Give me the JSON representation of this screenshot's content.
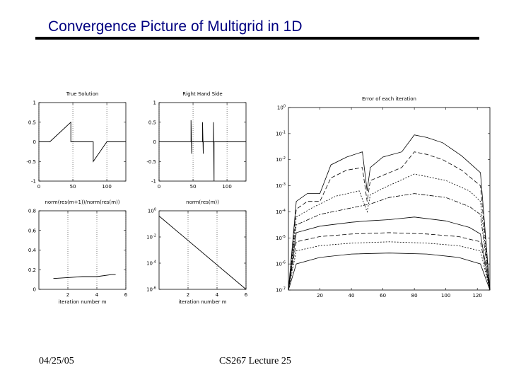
{
  "slide": {
    "title": "Convergence Picture of Multigrid in 1D",
    "footer_date": "04/25/05",
    "footer_lecture": "CS267 Lecture 25"
  },
  "chart_data": [
    {
      "type": "line",
      "title": "True Solution",
      "xlim": [
        0,
        128
      ],
      "ylim": [
        -1,
        1
      ],
      "xticks": [
        "0",
        "50",
        "100"
      ],
      "yticks": [
        "1",
        "0.5",
        "0",
        "-0.5",
        "-1"
      ],
      "series": [
        {
          "points": [
            [
              0,
              0
            ],
            [
              16,
              0
            ],
            [
              47,
              0.5
            ],
            [
              47,
              0
            ],
            [
              80,
              0
            ],
            [
              80,
              -0.5
            ],
            [
              100,
              0
            ],
            [
              128,
              0
            ]
          ]
        }
      ]
    },
    {
      "type": "line",
      "title": "Right Hand Side",
      "xlim": [
        0,
        128
      ],
      "ylim": [
        -1,
        1
      ],
      "xticks": [
        "0",
        "50",
        "100"
      ],
      "yticks": [
        "1",
        "0.5",
        "0",
        "-0.5",
        "-1"
      ],
      "series": [
        {
          "points": [
            [
              0,
              0
            ],
            [
              47,
              0
            ],
            [
              47,
              0.55
            ],
            [
              48,
              -0.3
            ],
            [
              48,
              0
            ],
            [
              64,
              0
            ],
            [
              64,
              0.5
            ],
            [
              65,
              -0.3
            ],
            [
              65,
              0
            ],
            [
              80,
              0
            ],
            [
              80,
              0.5
            ],
            [
              81,
              -1
            ],
            [
              81,
              0
            ],
            [
              128,
              0
            ]
          ]
        }
      ]
    },
    {
      "type": "line",
      "title": "norm(res(m+1))/norm(res(m))",
      "xlabel": "iteration number m",
      "xlim": [
        0,
        6
      ],
      "ylim": [
        0,
        0.8
      ],
      "xticks": [
        "2",
        "4",
        "6"
      ],
      "yticks": [
        "0.8",
        "0.6",
        "0.4",
        "0.2",
        "0"
      ],
      "series": [
        {
          "points": [
            [
              1,
              0.11
            ],
            [
              2,
              0.12
            ],
            [
              3,
              0.13
            ],
            [
              4,
              0.13
            ],
            [
              5,
              0.15
            ],
            [
              5.3,
              0.15
            ]
          ]
        }
      ]
    },
    {
      "type": "line",
      "title": "norm(res(m))",
      "xlabel": "iteration number m",
      "xlim": [
        0,
        6
      ],
      "ylim": [
        -6,
        0
      ],
      "yscale": "log",
      "xticks": [
        "2",
        "4",
        "6"
      ],
      "yticks": [
        "10^0",
        "10^-2",
        "10^-4",
        "10^-6"
      ],
      "series": [
        {
          "points": [
            [
              0,
              -0.4
            ],
            [
              6,
              -6
            ]
          ]
        }
      ]
    },
    {
      "type": "line",
      "title": "Error of each iteration",
      "xlim": [
        0,
        128
      ],
      "ylim": [
        -7,
        0
      ],
      "yscale": "log",
      "xticks": [
        "20",
        "40",
        "60",
        "80",
        "100",
        "120"
      ],
      "yticks": [
        "10^0",
        "10^-1",
        "10^-2",
        "10^-3",
        "10^-4",
        "10^-5",
        "10^-6",
        "10^-7"
      ],
      "series": [
        {
          "points": [
            [
              0,
              -7
            ],
            [
              5,
              -3.6
            ],
            [
              12,
              -3.3
            ],
            [
              20,
              -3.3
            ],
            [
              27,
              -2.2
            ],
            [
              37,
              -1.9
            ],
            [
              47,
              -1.7
            ],
            [
              50,
              -3.2
            ],
            [
              52,
              -2.3
            ],
            [
              60,
              -1.9
            ],
            [
              72,
              -1.7
            ],
            [
              80,
              -1.05
            ],
            [
              88,
              -1.15
            ],
            [
              98,
              -1.35
            ],
            [
              110,
              -1.85
            ],
            [
              122,
              -2.5
            ],
            [
              128,
              -7
            ]
          ]
        },
        {
          "points": [
            [
              0,
              -7
            ],
            [
              5,
              -3.9
            ],
            [
              12,
              -3.6
            ],
            [
              20,
              -3.6
            ],
            [
              27,
              -2.7
            ],
            [
              37,
              -2.4
            ],
            [
              47,
              -2.3
            ],
            [
              50,
              -3.6
            ],
            [
              52,
              -2.8
            ],
            [
              60,
              -2.6
            ],
            [
              72,
              -2.3
            ],
            [
              80,
              -1.7
            ],
            [
              88,
              -1.8
            ],
            [
              98,
              -2.0
            ],
            [
              110,
              -2.4
            ],
            [
              122,
              -3.0
            ],
            [
              128,
              -7
            ]
          ]
        },
        {
          "points": [
            [
              0,
              -7
            ],
            [
              5,
              -4.2
            ],
            [
              15,
              -3.85
            ],
            [
              30,
              -3.4
            ],
            [
              45,
              -3.2
            ],
            [
              50,
              -4.0
            ],
            [
              52,
              -3.35
            ],
            [
              60,
              -3.1
            ],
            [
              80,
              -2.55
            ],
            [
              100,
              -2.8
            ],
            [
              115,
              -3.2
            ],
            [
              122,
              -3.6
            ],
            [
              128,
              -7
            ]
          ]
        },
        {
          "points": [
            [
              0,
              -7
            ],
            [
              5,
              -4.5
            ],
            [
              20,
              -4.1
            ],
            [
              40,
              -3.85
            ],
            [
              52,
              -3.7
            ],
            [
              64,
              -3.45
            ],
            [
              80,
              -3.3
            ],
            [
              100,
              -3.45
            ],
            [
              115,
              -3.8
            ],
            [
              122,
              -4.1
            ],
            [
              128,
              -7
            ]
          ]
        },
        {
          "points": [
            [
              0,
              -7
            ],
            [
              5,
              -4.8
            ],
            [
              20,
              -4.55
            ],
            [
              40,
              -4.4
            ],
            [
              50,
              -4.35
            ],
            [
              64,
              -4.3
            ],
            [
              80,
              -4.2
            ],
            [
              100,
              -4.35
            ],
            [
              115,
              -4.6
            ],
            [
              122,
              -4.85
            ],
            [
              128,
              -7
            ]
          ]
        },
        {
          "points": [
            [
              0,
              -7
            ],
            [
              5,
              -5.15
            ],
            [
              20,
              -4.95
            ],
            [
              40,
              -4.85
            ],
            [
              64,
              -4.8
            ],
            [
              88,
              -4.85
            ],
            [
              108,
              -4.95
            ],
            [
              122,
              -5.15
            ],
            [
              128,
              -7
            ]
          ]
        },
        {
          "points": [
            [
              0,
              -7
            ],
            [
              5,
              -5.5
            ],
            [
              20,
              -5.3
            ],
            [
              40,
              -5.2
            ],
            [
              64,
              -5.15
            ],
            [
              88,
              -5.2
            ],
            [
              108,
              -5.3
            ],
            [
              122,
              -5.5
            ],
            [
              128,
              -7
            ]
          ]
        },
        {
          "points": [
            [
              0,
              -7
            ],
            [
              5,
              -6.0
            ],
            [
              20,
              -5.75
            ],
            [
              40,
              -5.62
            ],
            [
              64,
              -5.58
            ],
            [
              88,
              -5.62
            ],
            [
              108,
              -5.75
            ],
            [
              122,
              -6.0
            ],
            [
              128,
              -7
            ]
          ]
        }
      ]
    }
  ]
}
